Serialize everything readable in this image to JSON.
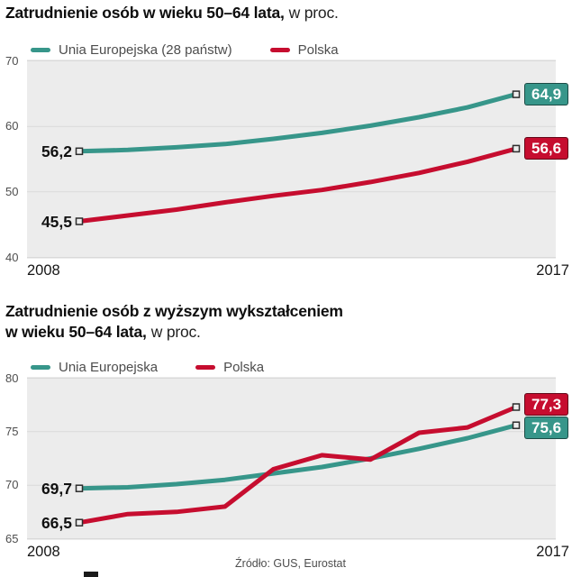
{
  "source": "Źródło: GUS, Eurostat",
  "style": {
    "panel_bg": "#ececec",
    "grid": "#d9d9d9",
    "eu_teal": "#37968a",
    "poland_red": "#c60d2f",
    "marker_fill": "#ededed",
    "marker_stroke": "#2d2d2d"
  },
  "chart_data": [
    {
      "type": "line",
      "title_bold": "Zatrudnienie osób w wieku 50–64 lata,",
      "title_note": "w proc.",
      "x": [
        2008,
        2009,
        2010,
        2011,
        2012,
        2013,
        2014,
        2015,
        2016,
        2017
      ],
      "xtick_labels": [
        "2008",
        "2017"
      ],
      "ylim": [
        40,
        70
      ],
      "yticks": [
        70,
        60,
        50,
        40
      ],
      "grid": true,
      "legend_position": "top",
      "series": [
        {
          "name": "Unia Europejska (28 państw)",
          "color": "#37968a",
          "values": [
            56.2,
            56.4,
            56.8,
            57.3,
            58.1,
            59.0,
            60.1,
            61.4,
            62.9,
            64.9
          ],
          "start_label": "56,2",
          "end_label": "64,9"
        },
        {
          "name": "Polska",
          "color": "#c60d2f",
          "values": [
            45.5,
            46.4,
            47.3,
            48.4,
            49.4,
            50.3,
            51.5,
            52.9,
            54.6,
            56.6
          ],
          "start_label": "45,5",
          "end_label": "56,6"
        }
      ]
    },
    {
      "type": "line",
      "title_bold": "Zatrudnienie osób z wyższym wykształceniem\nw wieku 50–64 lata,",
      "title_note": "w proc.",
      "x": [
        2008,
        2009,
        2010,
        2011,
        2012,
        2013,
        2014,
        2015,
        2016,
        2017
      ],
      "xtick_labels": [
        "2008",
        "2017"
      ],
      "ylim": [
        65,
        80
      ],
      "yticks": [
        80,
        75,
        70,
        65
      ],
      "grid": true,
      "legend_position": "top",
      "series": [
        {
          "name": "Unia Europejska",
          "color": "#37968a",
          "values": [
            69.7,
            69.8,
            70.1,
            70.5,
            71.1,
            71.7,
            72.5,
            73.4,
            74.4,
            75.6
          ],
          "start_label": "69,7",
          "end_label": "75,6"
        },
        {
          "name": "Polska",
          "color": "#c60d2f",
          "values": [
            66.5,
            67.3,
            67.5,
            68.0,
            71.5,
            72.8,
            72.4,
            74.9,
            75.4,
            77.3
          ],
          "start_label": "66,5",
          "end_label": "77,3"
        }
      ]
    }
  ]
}
